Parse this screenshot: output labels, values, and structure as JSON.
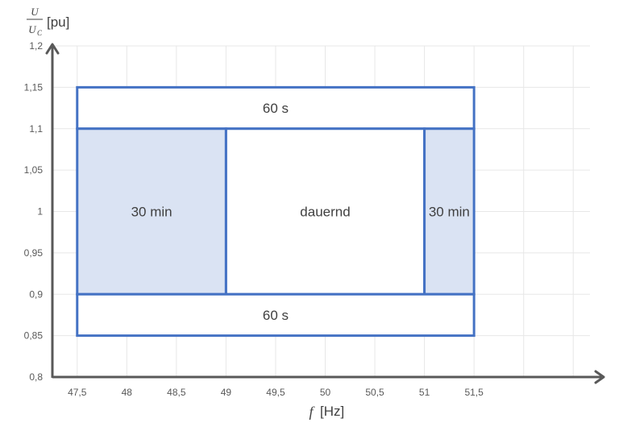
{
  "chart_data": {
    "type": "area",
    "xlabel": {
      "symbol": "f",
      "unit": "[Hz]"
    },
    "ylabel": {
      "numerator": "U",
      "denominator": "U",
      "denominator_subscript": "C",
      "unit": "[pu]"
    },
    "xlim": [
      47.25,
      52.75
    ],
    "ylim": [
      0.8,
      1.2
    ],
    "x_ticks": [
      47.5,
      48,
      48.5,
      49,
      49.5,
      50,
      50.5,
      51,
      51.5
    ],
    "x_tick_labels": [
      "47,5",
      "48",
      "48,5",
      "49",
      "49,5",
      "50",
      "50,5",
      "51",
      "51,5"
    ],
    "y_ticks": [
      0.8,
      0.85,
      0.9,
      0.95,
      1.0,
      1.05,
      1.1,
      1.15,
      1.2
    ],
    "y_tick_labels": [
      "0,8",
      "0,85",
      "0,9",
      "0,95",
      "1",
      "1,05",
      "1,1",
      "1,15",
      "1,2"
    ],
    "grid": true,
    "colors": {
      "border": "#4472c4",
      "fill": "#dae3f3",
      "axis": "#595959",
      "grid": "#e7e7e7"
    },
    "regions": [
      {
        "label": "60 s",
        "x": [
          47.5,
          51.5
        ],
        "y": [
          1.1,
          1.15
        ],
        "shaded": false
      },
      {
        "label": "30 min",
        "x": [
          47.5,
          49
        ],
        "y": [
          0.9,
          1.1
        ],
        "shaded": true
      },
      {
        "label": "dauernd",
        "x": [
          49,
          51
        ],
        "y": [
          0.9,
          1.1
        ],
        "shaded": false
      },
      {
        "label": "30 min",
        "x": [
          51,
          51.5
        ],
        "y": [
          0.9,
          1.1
        ],
        "shaded": true
      },
      {
        "label": "60 s",
        "x": [
          47.5,
          51.5
        ],
        "y": [
          0.85,
          0.9
        ],
        "shaded": false
      }
    ]
  }
}
